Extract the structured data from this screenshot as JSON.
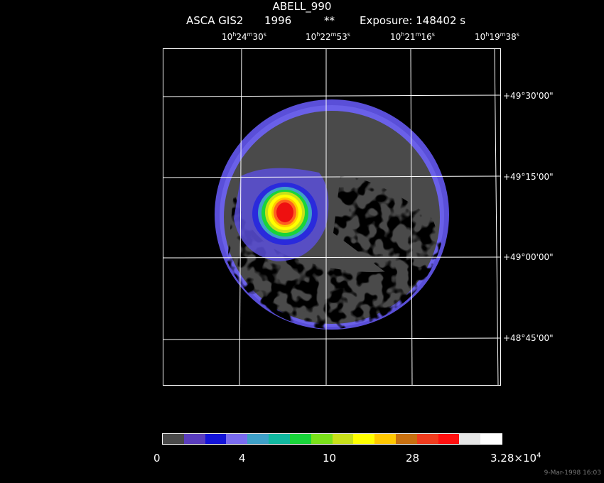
{
  "header": {
    "title": "ABELL_990",
    "instrument": "ASCA GIS2",
    "year": "1996",
    "marker": "**",
    "exposure": "Exposure: 148402 s"
  },
  "ra_labels": [
    {
      "h": "10",
      "m": "24",
      "s": "30"
    },
    {
      "h": "10",
      "m": "22",
      "s": "53"
    },
    {
      "h": "10",
      "m": "21",
      "s": "16"
    },
    {
      "h": "10",
      "m": "19",
      "s": "38"
    }
  ],
  "dec_labels": [
    "+49°30'00\"",
    "+49°15'00\"",
    "+49°00'00\"",
    "+48°45'00\""
  ],
  "colorbar": {
    "colors": [
      "#4a4a4a",
      "#5a3dbd",
      "#1414d8",
      "#7a6cf0",
      "#3fa0c8",
      "#12b8a0",
      "#19d43a",
      "#7ae01a",
      "#c8e01a",
      "#ffff00",
      "#ffc800",
      "#c87010",
      "#f03c1e",
      "#ff1010",
      "#e6e6e6",
      "#ffffff"
    ],
    "labels": [
      "0",
      "4",
      "10",
      "28",
      "3.28×10"
    ],
    "exponent": "4"
  },
  "image": {
    "grid_color": "#ffffff",
    "background_color": "#4a4a4a",
    "low_color": "#000000"
  },
  "timestamp": "9-Mar-1998 16:03"
}
